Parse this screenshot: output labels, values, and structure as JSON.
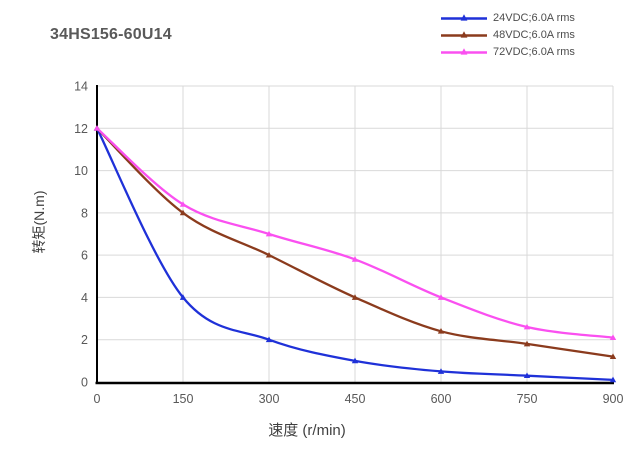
{
  "title": "34HS156-60U14",
  "chart_data": {
    "type": "line",
    "title": "34HS156-60U14",
    "x": [
      0,
      150,
      300,
      450,
      600,
      750,
      900
    ],
    "series": [
      {
        "name": "24VDC;6.0A rms",
        "color": "#1f31d8",
        "values": [
          12,
          4,
          2,
          1,
          0.5,
          0.3,
          0.1
        ]
      },
      {
        "name": "48VDC;6.0A rms",
        "color": "#8b3b1d",
        "values": [
          12,
          8,
          6,
          4,
          2.4,
          1.8,
          1.2
        ]
      },
      {
        "name": "72VDC;6.0A rms",
        "color": "#fa50f0",
        "values": [
          12,
          8.4,
          7,
          5.8,
          4,
          2.6,
          2.1
        ]
      }
    ],
    "xlabel": "速度 (r/min)",
    "ylabel": "转矩(N.m)",
    "xlim": [
      0,
      900
    ],
    "ylim": [
      0,
      14
    ],
    "xticks": [
      0,
      150,
      300,
      450,
      600,
      750,
      900
    ],
    "yticks": [
      0,
      2,
      4,
      6,
      8,
      10,
      12,
      14
    ],
    "grid": true,
    "legend_position": "top-right",
    "marker": "triangle",
    "smooth": true
  },
  "colors": {
    "background": "#ffffff",
    "grid": "#d9d9d9",
    "axis": "#000000",
    "tick_text": "#595959",
    "axis_title_text": "#404040",
    "title_text": "#595959"
  }
}
